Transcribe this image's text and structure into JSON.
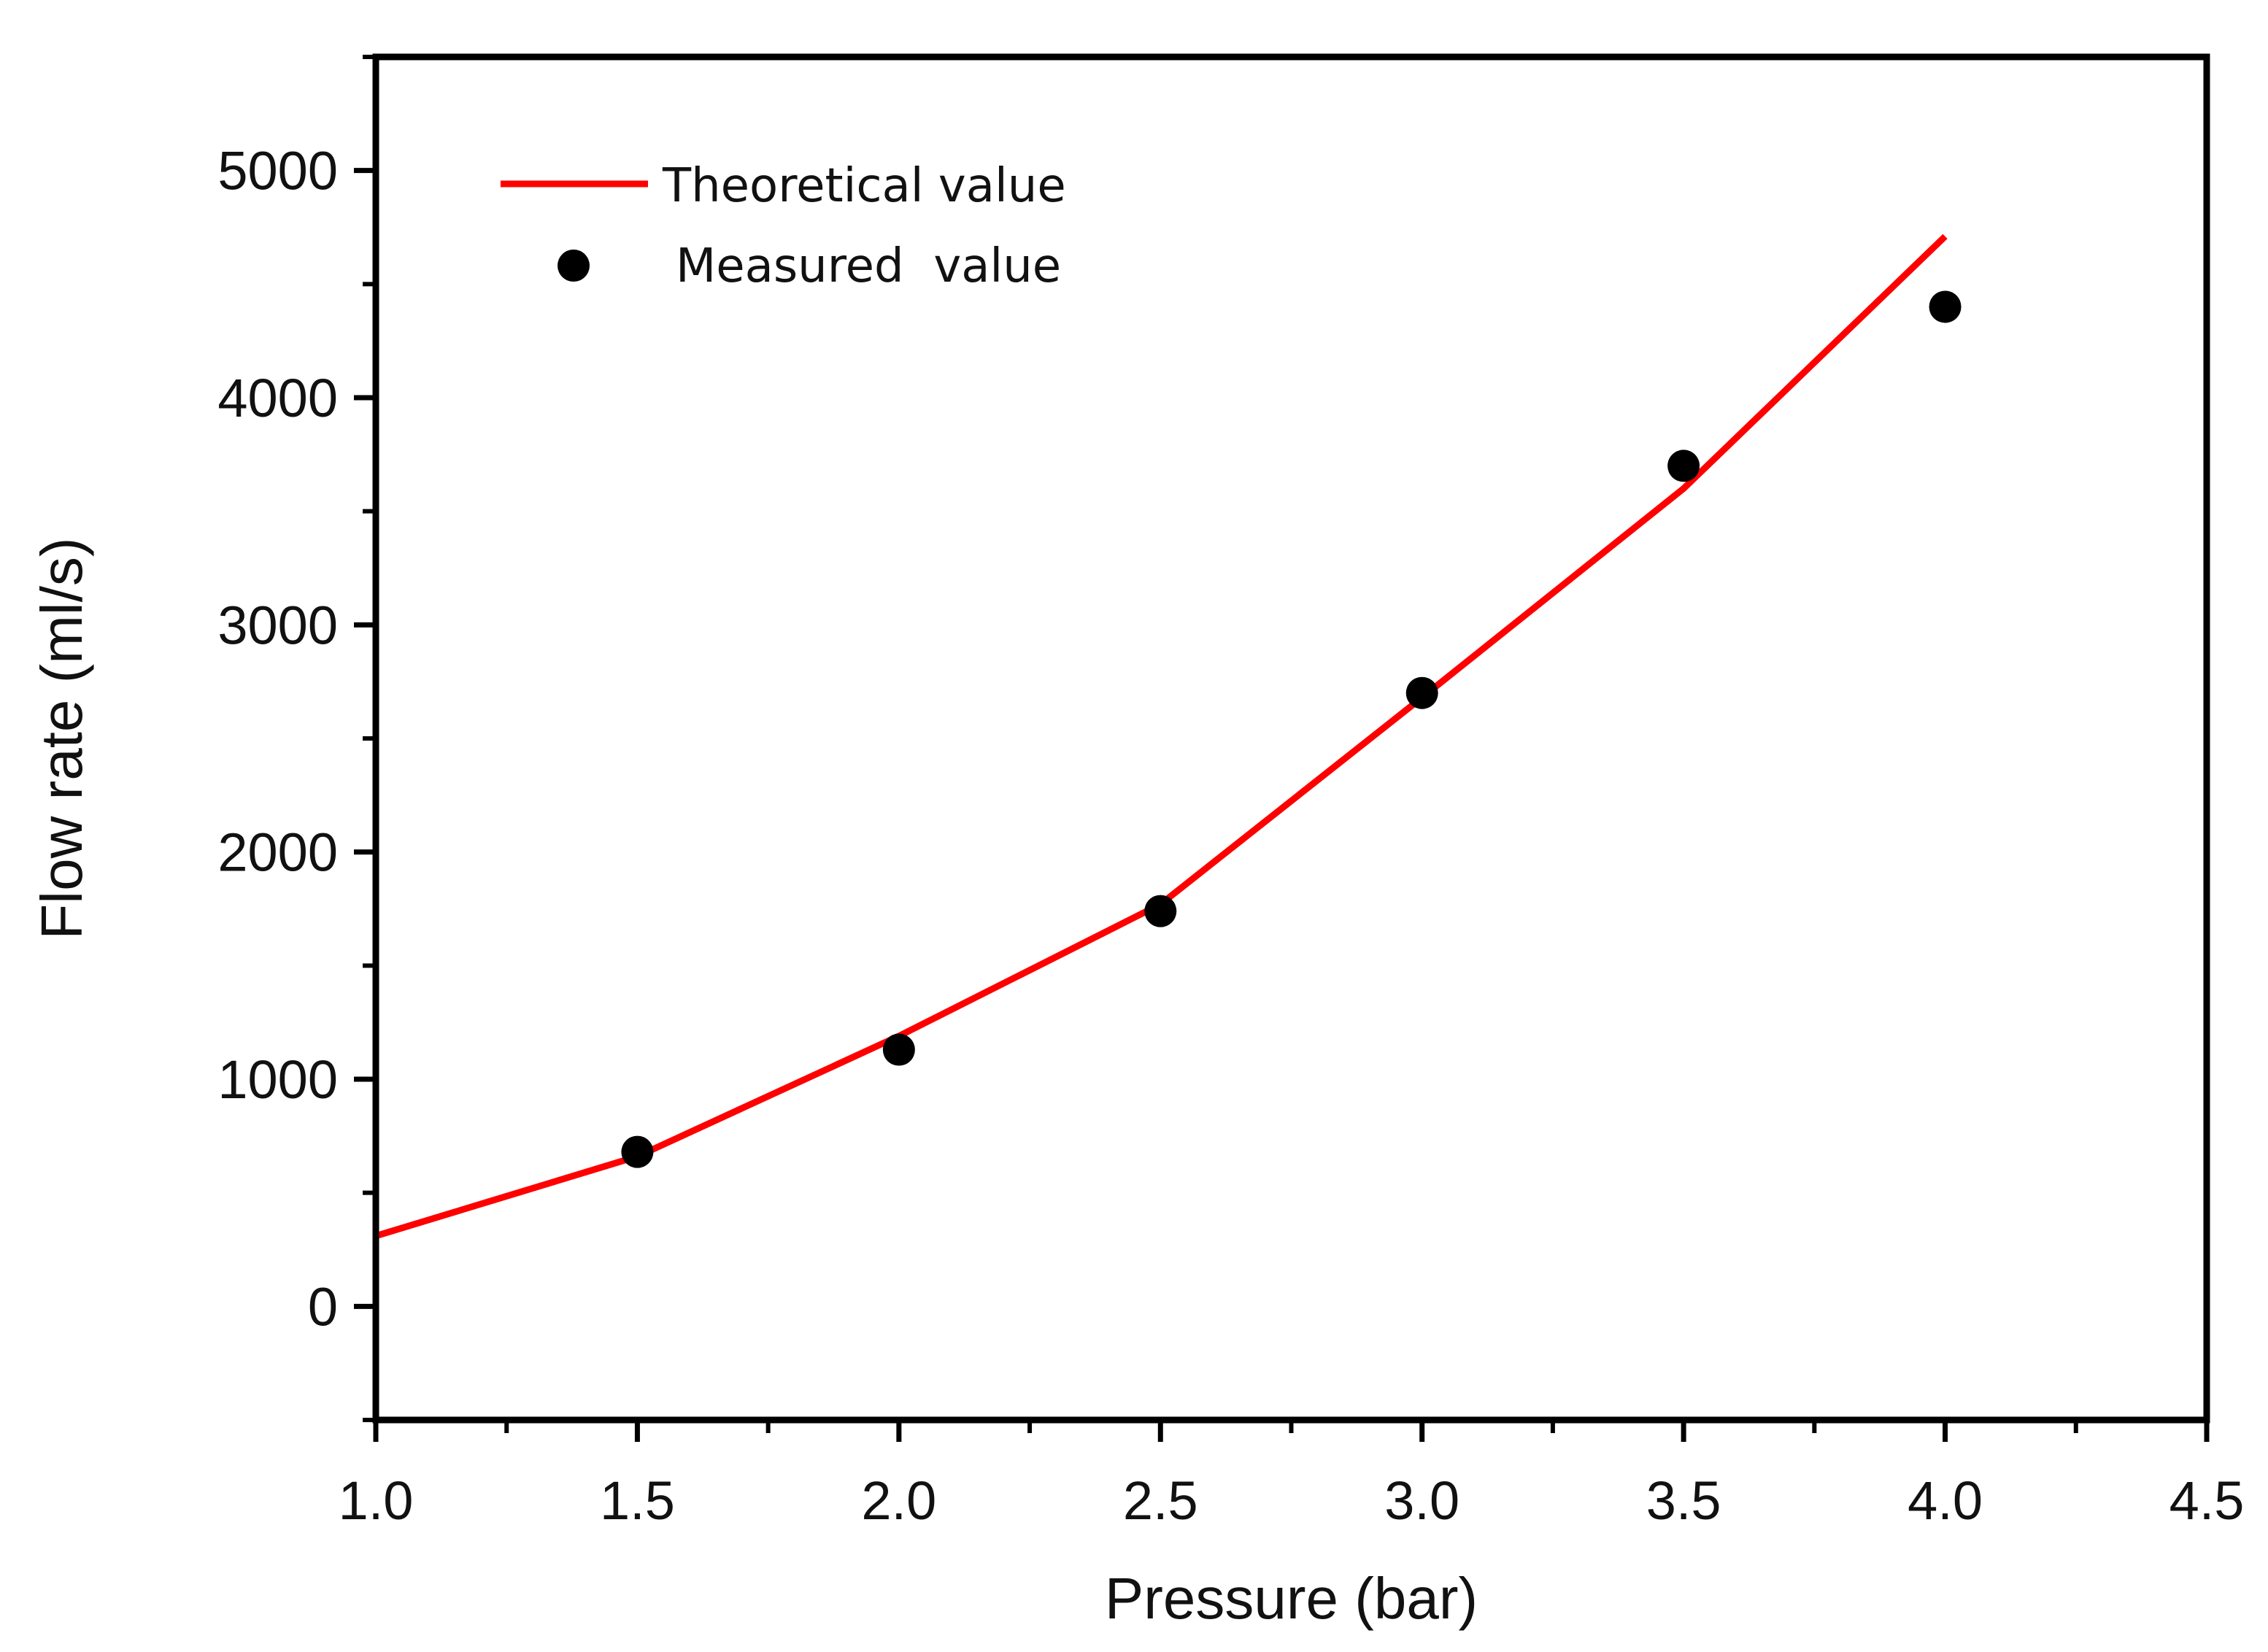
{
  "chart_data": {
    "type": "line",
    "title": "",
    "xlabel": "Pressure (bar)",
    "ylabel": "Flow rate (ml/s)",
    "xlim": [
      1.0,
      4.5
    ],
    "ylim": [
      -500,
      5500
    ],
    "x_ticks": [
      "1.0",
      "1.5",
      "2.0",
      "2.5",
      "3.0",
      "3.5",
      "4.0",
      "4.5"
    ],
    "y_ticks": [
      "0",
      "1000",
      "2000",
      "3000",
      "4000",
      "5000"
    ],
    "grid": false,
    "legend_position": "top-left",
    "series": [
      {
        "name": "Theoretical value",
        "style": "line",
        "color": "#ff0000",
        "x": [
          1.0,
          1.5,
          2.0,
          2.5,
          3.0,
          3.5,
          4.0
        ],
        "values": [
          310,
          660,
          1190,
          1770,
          2680,
          3600,
          4710
        ]
      },
      {
        "name": "Measured  value",
        "style": "scatter",
        "color": "#000000",
        "x": [
          1.5,
          2.0,
          2.5,
          3.0,
          3.5,
          4.0
        ],
        "values": [
          680,
          1130,
          1740,
          2700,
          3700,
          4400
        ]
      }
    ]
  }
}
